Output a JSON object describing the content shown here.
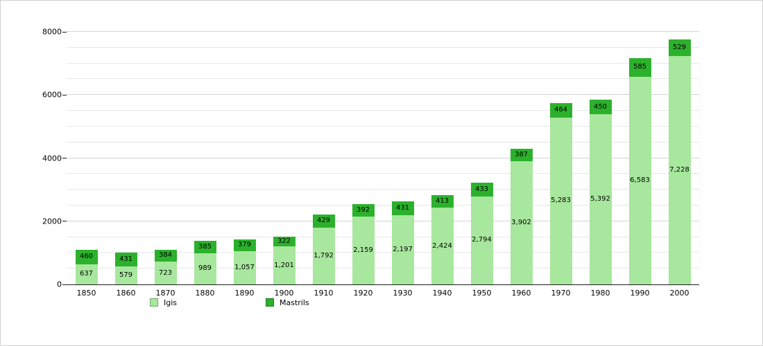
{
  "chart_data": {
    "type": "bar",
    "stacked": true,
    "title": "",
    "xlabel": "",
    "ylabel": "",
    "ylim": [
      0,
      8000
    ],
    "yticks": [
      "0",
      "2000",
      "4000",
      "6000",
      "8000"
    ],
    "ytick_values": [
      0,
      2000,
      4000,
      6000,
      8000
    ],
    "ytick_step": 2000,
    "grid_step": 500,
    "grid": true,
    "legend_position": "bottom",
    "categories": [
      "1850",
      "1860",
      "1870",
      "1880",
      "1890",
      "1900",
      "1910",
      "1920",
      "1930",
      "1940",
      "1950",
      "1960",
      "1970",
      "1980",
      "1990",
      "2000"
    ],
    "series": [
      {
        "name": "Igis",
        "color": "#a8e79e",
        "values": [
          637,
          579,
          723,
          989,
          1057,
          1201,
          1792,
          2159,
          2197,
          2424,
          2794,
          3902,
          5283,
          5392,
          6583,
          7228
        ],
        "labels": [
          "637",
          "579",
          "723",
          "989",
          "1,057",
          "1,201",
          "1,792",
          "2,159",
          "2,197",
          "2,424",
          "2,794",
          "3,902",
          "5,283",
          "5,392",
          "6,583",
          "7,228"
        ]
      },
      {
        "name": "Mastrils",
        "color": "#2cb12c",
        "values": [
          460,
          431,
          384,
          385,
          379,
          322,
          429,
          392,
          431,
          413,
          433,
          387,
          464,
          450,
          585,
          529
        ],
        "labels": [
          "460",
          "431",
          "384",
          "385",
          "379",
          "322",
          "429",
          "392",
          "431",
          "413",
          "433",
          "387",
          "464",
          "450",
          "585",
          "529"
        ]
      }
    ],
    "totals": [
      1097,
      1010,
      1107,
      1374,
      1436,
      1523,
      2221,
      2551,
      2628,
      2837,
      3227,
      4289,
      5747,
      5842,
      7168,
      7757
    ]
  }
}
